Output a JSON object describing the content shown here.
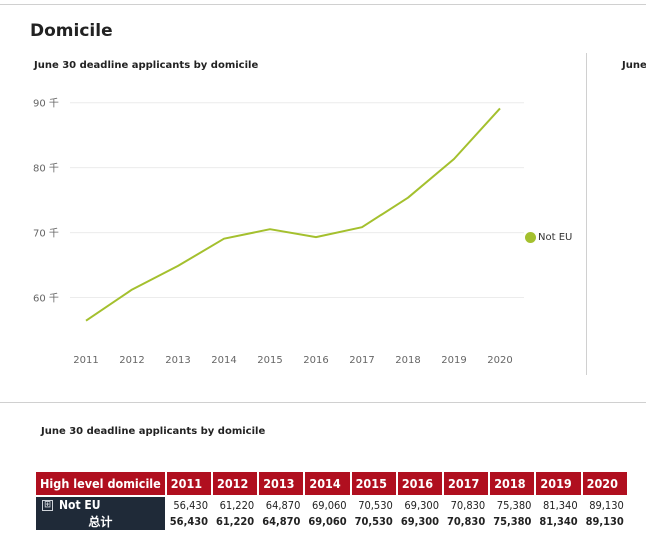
{
  "section": {
    "title": "Domicile"
  },
  "chart_data": {
    "type": "line",
    "title": "June 30 deadline applicants by domicile",
    "x": [
      "2011",
      "2012",
      "2013",
      "2014",
      "2015",
      "2016",
      "2017",
      "2018",
      "2019",
      "2020"
    ],
    "series": [
      {
        "name": "Not EU",
        "values": [
          56430,
          61220,
          64870,
          69060,
          70530,
          69300,
          70830,
          75380,
          81340,
          89130
        ]
      }
    ],
    "yticks": [
      60000,
      70000,
      80000,
      90000
    ],
    "ytick_labels": [
      "60 千",
      "70 千",
      "80 千",
      "90 千"
    ],
    "ylim": [
      55000,
      93500
    ],
    "grid": true,
    "legend": "right",
    "color": "#a4c02e"
  },
  "right_panel": {
    "title_fragment": "June"
  },
  "table": {
    "title": "June 30 deadline applicants by domicile",
    "header_label": "High level domicile",
    "years": [
      "2011",
      "2012",
      "2013",
      "2014",
      "2015",
      "2016",
      "2017",
      "2018",
      "2019",
      "2020"
    ],
    "rows": [
      {
        "expander": "⊞",
        "label": "Not EU",
        "values": [
          "56,430",
          "61,220",
          "64,870",
          "69,060",
          "70,530",
          "69,300",
          "70,830",
          "75,380",
          "81,340",
          "89,130"
        ]
      }
    ],
    "total": {
      "label": "总计",
      "values": [
        "56,430",
        "61,220",
        "64,870",
        "69,060",
        "70,530",
        "69,300",
        "70,830",
        "75,380",
        "81,340",
        "89,130"
      ]
    }
  },
  "colors": {
    "header_bg": "#b00f1f",
    "rowlabel_bg": "#1f2a38",
    "line": "#a4c02e"
  }
}
